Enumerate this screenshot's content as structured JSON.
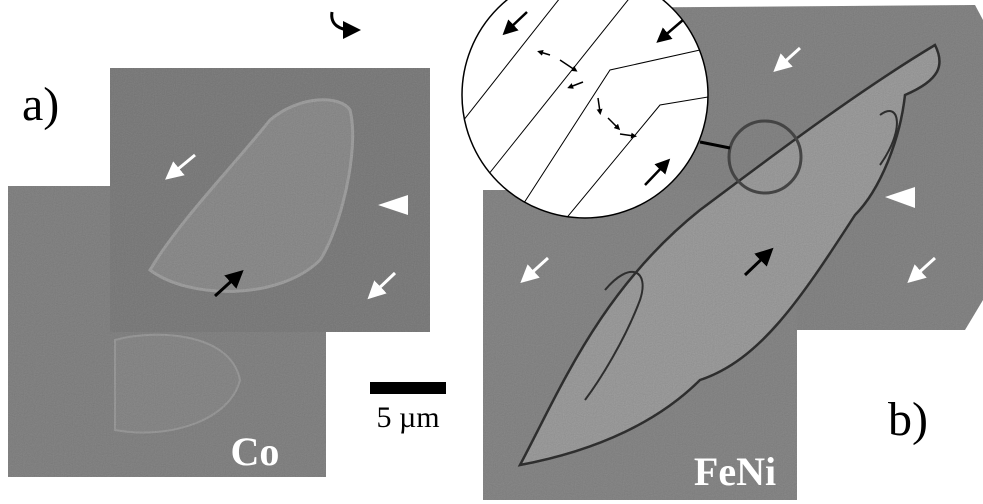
{
  "labels": {
    "panel_a": "a)",
    "panel_b": "b)",
    "sample_a": "Co",
    "sample_b": "FeNi",
    "scale_bar": "5 µm"
  }
}
